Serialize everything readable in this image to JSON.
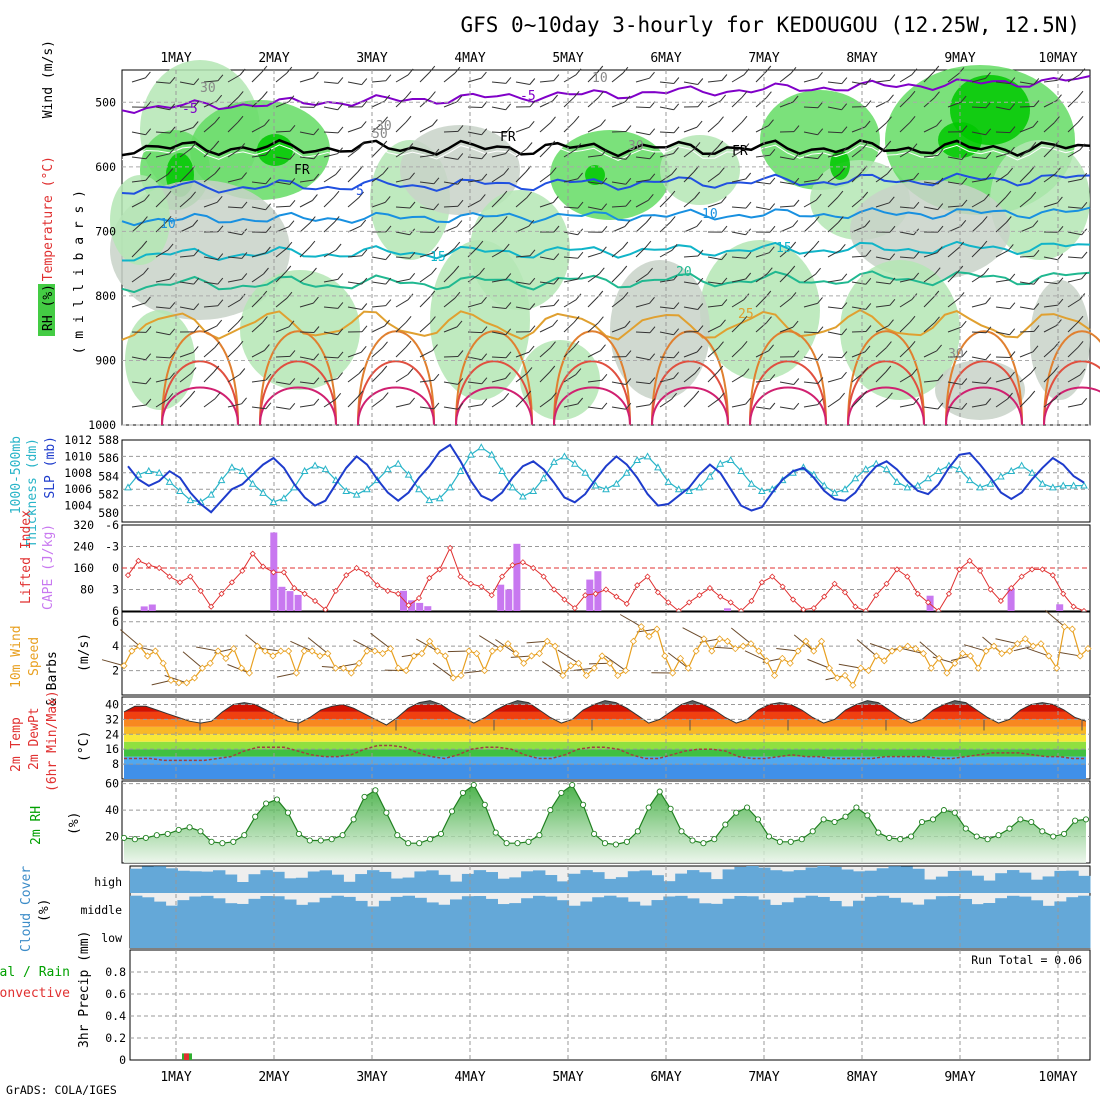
{
  "title": "GFS 0~10day 3-hourly for KEDOUGOU (12.25W, 12.5N)",
  "footer": "GrADS: COLA/IGES",
  "days": [
    "1MAY",
    "2MAY",
    "3MAY",
    "4MAY",
    "5MAY",
    "6MAY",
    "7MAY",
    "8MAY",
    "9MAY",
    "10MAY"
  ],
  "colors": {
    "rh_dark": "#00c800",
    "rh_mid": "#64dc64",
    "rh_light": "#b4e6b4",
    "rh_grey": "#c8d2c8",
    "cloud": "#64a8d8",
    "cloud_gap": "#eeeeee",
    "slp": "#1e3ccc",
    "thick": "#28b4c8",
    "li": "#e03030",
    "cape": "#c878f0",
    "wind": "#e8a020"
  },
  "panels": {
    "upper": {
      "labels": [
        "Wind (m/s)",
        "Temperature (°C)",
        "RH (%)",
        "( m i l l i b a r s )"
      ],
      "y_ticks": [
        "500",
        "600",
        "700",
        "800",
        "900",
        "1000"
      ],
      "contour_labels": [
        "-5",
        "-5",
        "5",
        "10",
        "10",
        "15",
        "15",
        "20",
        "25",
        "FR",
        "FR",
        "FR",
        "30",
        "30",
        "30",
        "30",
        "50",
        "10"
      ]
    },
    "pressure": {
      "labels": [
        "1000-500mb",
        "Thickness (dm)",
        "SLP (mb)"
      ],
      "left_ticks": [
        "580",
        "582",
        "584",
        "586",
        "588"
      ],
      "right_ticks": [
        "1004",
        "1006",
        "1008",
        "1010",
        "1012"
      ]
    },
    "instab": {
      "labels": [
        "Lifted Index",
        "CAPE (J/kg)"
      ],
      "left_ticks": [
        "6",
        "3",
        "0",
        "-3",
        "-6"
      ],
      "right_ticks": [
        "80",
        "160",
        "240",
        "320"
      ]
    },
    "wind10": {
      "labels": [
        "10m Wind",
        "Speed",
        "& Barbs",
        "(m/s)"
      ],
      "ticks": [
        "2",
        "4",
        "6"
      ]
    },
    "temp": {
      "labels": [
        "2m Temp",
        "2m DewPt",
        "(6hr Min/Max)",
        "(°C)"
      ],
      "ticks": [
        "8",
        "16",
        "24",
        "32",
        "40"
      ]
    },
    "rh": {
      "labels": [
        "2m RH",
        "(%)"
      ],
      "ticks": [
        "20",
        "40",
        "60"
      ]
    },
    "cloud": {
      "labels": [
        "Cloud Cover",
        "(%)"
      ],
      "levels": [
        "high",
        "middle",
        "low"
      ]
    },
    "precip": {
      "labels": [
        "Total / Rain",
        "Convective",
        "3hr Precip (mm)"
      ],
      "ticks": [
        "0",
        "0.2",
        "0.4",
        "0.6",
        "0.8"
      ],
      "run_total": "Run Total = 0.06"
    }
  },
  "chart_data": [
    {
      "type": "line",
      "name": "slp_thickness",
      "series": [
        {
          "name": "SLP (mb)",
          "values": [
            1008.8,
            1007.2,
            1006.4,
            1007.0,
            1008.2,
            1007.4,
            1005.6,
            1004.2,
            1003.2,
            1004.6,
            1006.0,
            1006.6,
            1007.8,
            1009.0,
            1009.8,
            1008.6,
            1006.6,
            1005.0,
            1004.0,
            1004.6,
            1006.6,
            1008.6,
            1010.0,
            1009.0,
            1007.2,
            1005.6,
            1004.6,
            1005.6,
            1007.4,
            1008.8,
            1010.6,
            1011.4,
            1009.4,
            1007.0,
            1005.2,
            1004.6,
            1005.6,
            1007.4,
            1008.8,
            1009.4,
            1008.4,
            1006.8,
            1005.0,
            1004.4,
            1005.4,
            1007.2,
            1008.8,
            1010.0,
            1009.0,
            1007.4,
            1005.4,
            1004.0,
            1004.2,
            1005.2,
            1006.2,
            1007.8,
            1009.0,
            1008.0,
            1006.0,
            1004.0,
            1003.4,
            1003.8,
            1005.6,
            1007.2,
            1008.2,
            1008.6,
            1007.4,
            1005.8,
            1004.8,
            1004.6,
            1005.6,
            1007.4,
            1008.8,
            1009.4,
            1008.4,
            1007.0,
            1005.8,
            1005.4,
            1006.6,
            1008.6,
            1010.2,
            1010.4,
            1009.0,
            1007.4,
            1005.6,
            1004.8,
            1005.6,
            1007.2,
            1008.6,
            1009.8,
            1009.0,
            1007.6,
            1006.8
          ]
        },
        {
          "name": "1000-500mb Thickness (dm)",
          "values": [
            582.8,
            584.2,
            584.6,
            584.4,
            583.4,
            582.4,
            581.4,
            581.2,
            582.0,
            583.6,
            585.0,
            584.6,
            583.2,
            582.2,
            581.2,
            581.6,
            582.8,
            584.6,
            585.2,
            584.8,
            583.6,
            582.4,
            582.0,
            582.6,
            583.6,
            584.8,
            585.4,
            584.2,
            582.6,
            581.4,
            581.6,
            582.8,
            584.6,
            586.4,
            587.2,
            586.4,
            584.6,
            582.8,
            581.8,
            582.4,
            583.8,
            585.6,
            586.2,
            585.4,
            584.4,
            583.0,
            582.6,
            583.2,
            584.4,
            585.8,
            586.2,
            585.0,
            583.4,
            582.6,
            582.4,
            582.8,
            584.0,
            585.4,
            585.8,
            584.6,
            583.2,
            582.4,
            582.6,
            583.6,
            584.4,
            585.0,
            584.2,
            583.0,
            582.2,
            582.6,
            583.8,
            584.8,
            585.4,
            584.8,
            583.4,
            582.8,
            583.0,
            583.8,
            584.6,
            585.2,
            584.8,
            583.6,
            582.8,
            583.2,
            584.0,
            584.6,
            585.2,
            584.4,
            583.2,
            582.8,
            583.0,
            583.0,
            583.0
          ]
        }
      ],
      "ylim_left": [
        579,
        588
      ],
      "ylim_right": [
        1002,
        1012
      ]
    },
    {
      "type": "bar",
      "name": "lifted_index_cape",
      "series": [
        {
          "name": "Lifted Index",
          "values": [
            1.0,
            -1.0,
            -0.4,
            0.0,
            1.2,
            2.0,
            1.2,
            3.2,
            5.4,
            3.6,
            2.0,
            0.4,
            -2.0,
            -0.2,
            0.6,
            0.6,
            2.8,
            3.6,
            4.6,
            5.8,
            3.2,
            1.0,
            0.0,
            0.8,
            2.4,
            3.2,
            3.6,
            5.2,
            4.2,
            1.4,
            0.2,
            -2.8,
            1.2,
            2.2,
            2.6,
            3.8,
            1.2,
            -0.4,
            -0.8,
            0.0,
            1.2,
            3.0,
            4.4,
            5.6,
            3.8,
            3.6,
            3.0,
            4.0,
            5.0,
            2.4,
            1.2,
            3.4,
            4.8,
            6.0,
            4.8,
            3.8,
            2.8,
            4.0,
            4.8,
            6.0,
            4.6,
            2.0,
            1.2,
            2.6,
            4.4,
            5.8,
            5.6,
            4.0,
            2.2,
            3.4,
            5.4,
            6.0,
            3.8,
            2.2,
            0.2,
            1.2,
            3.6,
            4.8,
            6.0,
            3.6,
            0.2,
            -1.0,
            0.4,
            3.0,
            4.6,
            2.8,
            1.2,
            0.2,
            0.2,
            1.0,
            3.6,
            5.4,
            6.0
          ]
        },
        {
          "name": "CAPE (J/kg)",
          "values": [
            0,
            0,
            17,
            24,
            0,
            0,
            0,
            0,
            0,
            0,
            0,
            0,
            0,
            0,
            0,
            0,
            0,
            0,
            292,
            90,
            74,
            60,
            0,
            0,
            0,
            0,
            0,
            0,
            0,
            0,
            0,
            0,
            0,
            0,
            75,
            40,
            30,
            18,
            0,
            0,
            0,
            0,
            0,
            0,
            0,
            0,
            98,
            80,
            250,
            0,
            0,
            0,
            0,
            0,
            0,
            0,
            0,
            117,
            148,
            0,
            0,
            0,
            0,
            0,
            0,
            0,
            0,
            0,
            0,
            0,
            0,
            0,
            0,
            0,
            10,
            0,
            0,
            0,
            0,
            0,
            0,
            0,
            0,
            0,
            0,
            0,
            0,
            0,
            0,
            0,
            0,
            0,
            0,
            0,
            0,
            0,
            0,
            0,
            0,
            57,
            0,
            0,
            0,
            0,
            0,
            0,
            0,
            0,
            0,
            84,
            0,
            0,
            0,
            0,
            0,
            25,
            0,
            0,
            0
          ]
        }
      ],
      "ylim_left": [
        6,
        -6
      ],
      "ylim_right": [
        0,
        320
      ]
    },
    {
      "type": "line",
      "name": "wind_10m",
      "series": [
        {
          "name": "10m Wind Speed (m/s)",
          "values": [
            2.4,
            3.6,
            4.0,
            3.2,
            3.6,
            2.6,
            1.2,
            1.0,
            1.0,
            1.4,
            2.2,
            2.6,
            3.6,
            3.0,
            3.8,
            2.2,
            1.8,
            4.0,
            3.6,
            3.2,
            3.6,
            3.6,
            1.8,
            3.6,
            3.6,
            3.2,
            3.4,
            2.2,
            2.2,
            1.8,
            2.6,
            3.6,
            3.6,
            3.4,
            3.8,
            2.2,
            2.0,
            3.2,
            3.4,
            4.4,
            3.6,
            3.2,
            1.4,
            1.6,
            3.6,
            3.4,
            2.0,
            3.6,
            3.8,
            4.2,
            3.4,
            2.6,
            3.2,
            3.4,
            4.4,
            4.0,
            1.6,
            2.4,
            2.6,
            1.6,
            2.2,
            3.2,
            2.6,
            1.6,
            2.0,
            4.4,
            5.6,
            4.8,
            5.4,
            3.2,
            1.8,
            3.0,
            2.2,
            3.6,
            4.6,
            3.6,
            4.6,
            4.4,
            3.8,
            4.0,
            4.2,
            3.6,
            2.8,
            1.6,
            3.0,
            2.6,
            3.6,
            4.4,
            3.6,
            4.4,
            2.2,
            1.4,
            1.6,
            0.8,
            2.2,
            2.0,
            3.2,
            2.8,
            3.6,
            3.8,
            4.0,
            3.8,
            3.4,
            2.2,
            3.0,
            1.8,
            2.6,
            3.4,
            3.2,
            2.2,
            3.6,
            4.0,
            3.4,
            3.6,
            4.2,
            4.6,
            4.0,
            4.2,
            3.2,
            2.2,
            5.6,
            5.4,
            3.2,
            3.8
          ]
        }
      ],
      "ylim": [
        0,
        6.8
      ]
    },
    {
      "type": "area",
      "name": "temp_2m",
      "series": [
        {
          "name": "2m Temp (°C)",
          "values": [
            36,
            39,
            39,
            37,
            35,
            33,
            31,
            30,
            31,
            36,
            40,
            41,
            40,
            37,
            34,
            31,
            30,
            33,
            37,
            39,
            40,
            38,
            35,
            32,
            29,
            33,
            38,
            41,
            42,
            40,
            36,
            33,
            30,
            33,
            37,
            40,
            42,
            41,
            37,
            33,
            30,
            32,
            37,
            40,
            42,
            41,
            38,
            34,
            30,
            32,
            36,
            40,
            42,
            40,
            37,
            33,
            30,
            32,
            37,
            40,
            41,
            40,
            37,
            33,
            30,
            32,
            37,
            40,
            42,
            41,
            37,
            33,
            30,
            32,
            37,
            40,
            42,
            41,
            37,
            33,
            30,
            32,
            37,
            40,
            41,
            40,
            37,
            33,
            31
          ]
        },
        {
          "name": "2m DewPt (°C)",
          "values": [
            11,
            11,
            11,
            10,
            10,
            10,
            10,
            11,
            12,
            15,
            17,
            17,
            17,
            15,
            13,
            12,
            12,
            13,
            16,
            18,
            18,
            17,
            14,
            12,
            11,
            13,
            16,
            17,
            17,
            16,
            13,
            11,
            11,
            13,
            16,
            17,
            17,
            16,
            13,
            11,
            11,
            13,
            15,
            16,
            16,
            15,
            12,
            11,
            11,
            12,
            13,
            12,
            12,
            11,
            11,
            11,
            11,
            12,
            12,
            12,
            12,
            11,
            11,
            12,
            13,
            14,
            14,
            14,
            13,
            12,
            12,
            11,
            11
          ]
        }
      ],
      "ylim": [
        0,
        44
      ]
    },
    {
      "type": "area",
      "name": "rh_2m",
      "series": [
        {
          "name": "2m RH (%)",
          "values": [
            19,
            18,
            19,
            21,
            22,
            25,
            27,
            24,
            16,
            15,
            16,
            21,
            35,
            45,
            48,
            38,
            22,
            17,
            17,
            18,
            21,
            33,
            50,
            55,
            38,
            21,
            15,
            15,
            18,
            22,
            39,
            53,
            59,
            44,
            23,
            15,
            15,
            16,
            21,
            40,
            53,
            59,
            44,
            22,
            15,
            14,
            16,
            24,
            42,
            54,
            41,
            24,
            17,
            15,
            18,
            29,
            38,
            42,
            33,
            20,
            16,
            16,
            18,
            24,
            33,
            31,
            35,
            42,
            36,
            23,
            19,
            18,
            20,
            31,
            33,
            40,
            38,
            26,
            20,
            18,
            21,
            26,
            33,
            31,
            24,
            20,
            22,
            32,
            33
          ]
        }
      ],
      "ylim": [
        0,
        62
      ]
    },
    {
      "type": "bar",
      "name": "precip_3hr",
      "categories": [
        "1MAY"
      ],
      "series": [
        {
          "name": "Total / Rain (mm)",
          "values": [
            0.06
          ]
        },
        {
          "name": "Convective (mm)",
          "values": [
            0.06
          ]
        }
      ],
      "ylim": [
        0,
        1.0
      ]
    }
  ]
}
